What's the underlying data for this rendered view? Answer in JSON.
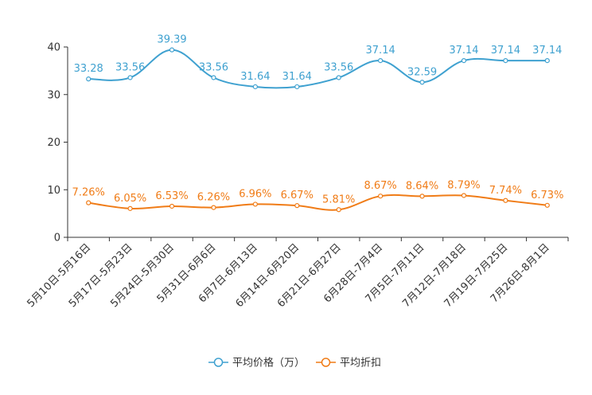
{
  "chart_data": {
    "type": "line",
    "categories": [
      "5月10日-5月16日",
      "5月17日-5月23日",
      "5月24日-5月30日",
      "5月31日-6月6日",
      "6月7日-6月13日",
      "6月14日-6月20日",
      "6月21日-6月27日",
      "6月28日-7月4日",
      "7月5日-7月11日",
      "7月12日-7月18日",
      "7月19日-7月25日",
      "7月26日-8月1日"
    ],
    "ylim": [
      0,
      40
    ],
    "yticks": [
      "0",
      "10",
      "20",
      "30",
      "40"
    ],
    "series": [
      {
        "name": "平均价格（万）",
        "color": "#3fa1d0",
        "values": [
          33.28,
          33.56,
          39.39,
          33.56,
          31.64,
          31.64,
          33.56,
          37.14,
          32.59,
          37.14,
          37.14,
          37.14
        ],
        "labels": [
          "33.28",
          "33.56",
          "39.39",
          "33.56",
          "31.64",
          "31.64",
          "33.56",
          "37.14",
          "32.59",
          "37.14",
          "37.14",
          "37.14"
        ]
      },
      {
        "name": "平均折扣",
        "color": "#f07c17",
        "values": [
          7.26,
          6.05,
          6.53,
          6.26,
          6.96,
          6.67,
          5.81,
          8.67,
          8.64,
          8.79,
          7.74,
          6.73
        ],
        "labels": [
          "7.26%",
          "6.05%",
          "6.53%",
          "6.26%",
          "6.96%",
          "6.67%",
          "5.81%",
          "8.67%",
          "8.64%",
          "8.79%",
          "7.74%",
          "6.73%"
        ]
      }
    ]
  }
}
